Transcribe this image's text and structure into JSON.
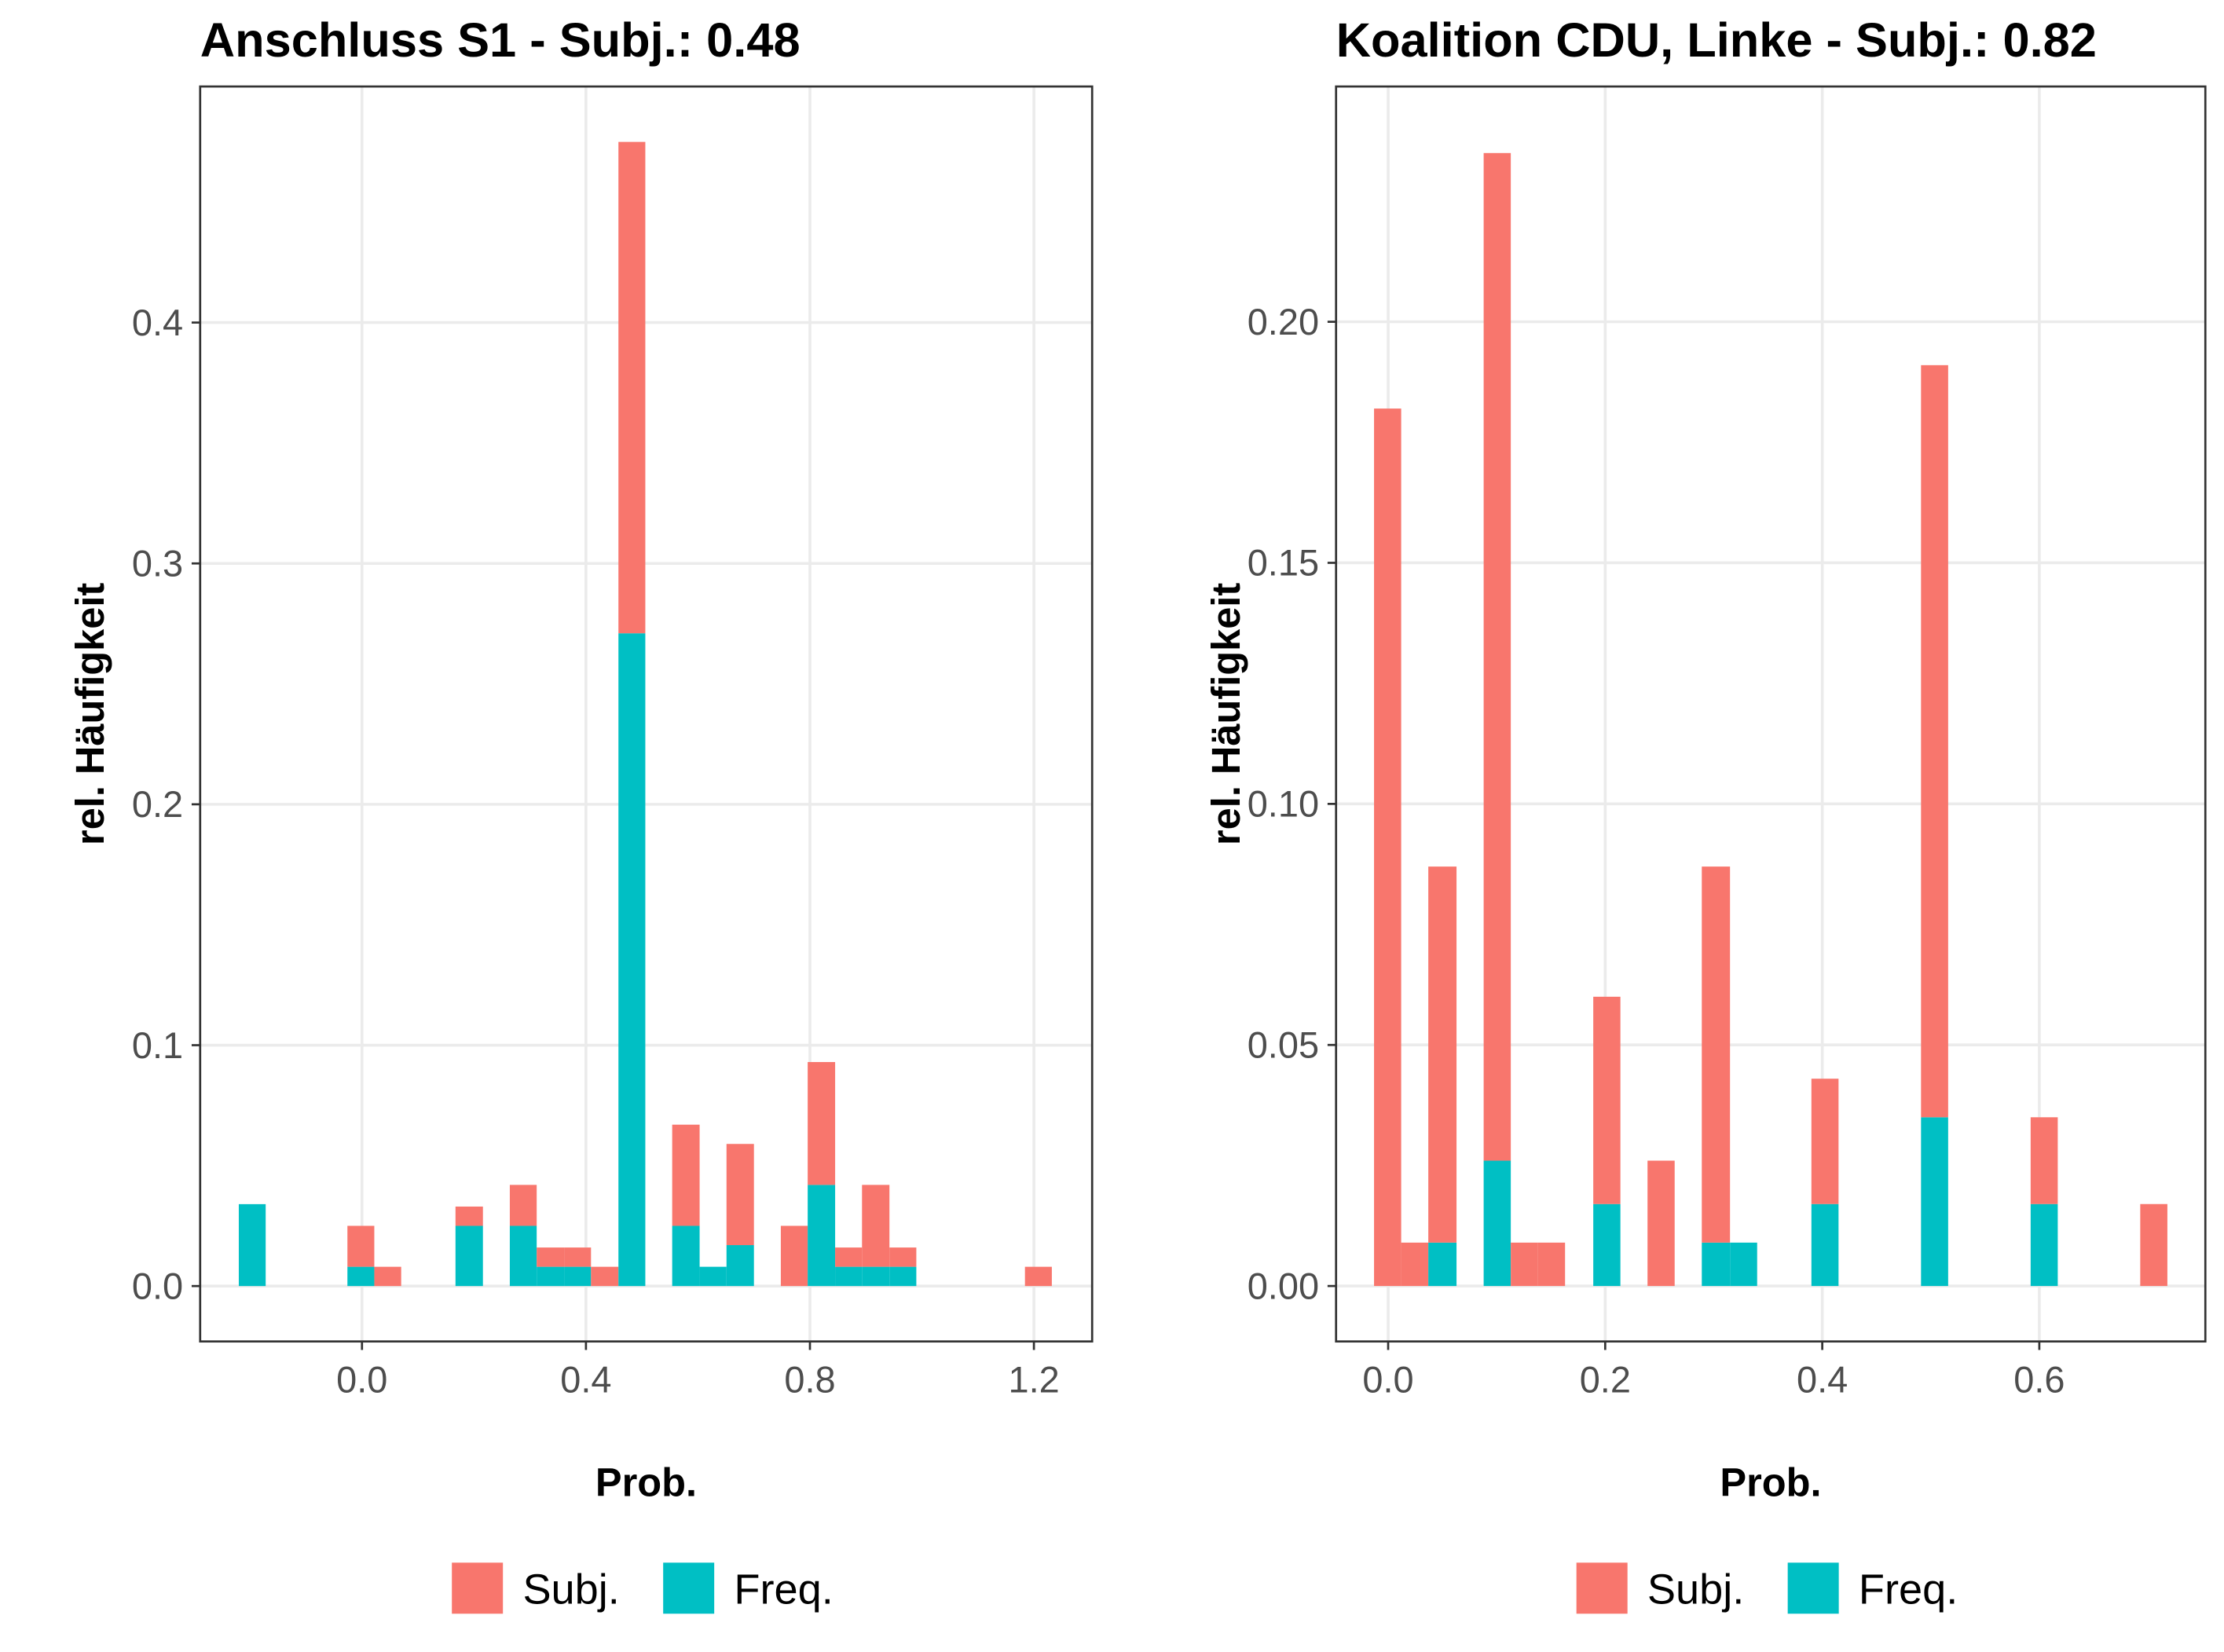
{
  "chart_data": [
    {
      "type": "histogram",
      "title": "Anschluss S1 - Subj.: 0.48",
      "x_label": "Prob.",
      "y_label": "rel. Häufigkeit",
      "bins": [
        -0.22,
        -0.172,
        -0.123,
        -0.075,
        -0.026,
        0.022,
        0.07,
        0.119,
        0.167,
        0.216,
        0.264,
        0.312,
        0.361,
        0.409,
        0.458,
        0.506,
        0.554,
        0.603,
        0.651,
        0.7,
        0.748,
        0.796,
        0.845,
        0.893,
        0.942,
        0.99,
        1.038,
        1.087,
        1.135,
        1.184,
        1.232
      ],
      "series": [
        {
          "name": "Subj.",
          "color": "#f8766d",
          "values": [
            0,
            0,
            0,
            0,
            0.017,
            0.008,
            0,
            0,
            0.008,
            0,
            0.017,
            0.008,
            0.008,
            0.008,
            0.204,
            0,
            0.042,
            0,
            0.042,
            0,
            0.025,
            0.051,
            0.008,
            0.034,
            0.008,
            0,
            0,
            0,
            0,
            0.008
          ]
        },
        {
          "name": "Freq.",
          "color": "#00bfc4",
          "values": [
            0.034,
            0,
            0,
            0,
            0.008,
            0,
            0,
            0,
            0.025,
            0,
            0.025,
            0.008,
            0.008,
            0,
            0.271,
            0,
            0.025,
            0.008,
            0.017,
            0,
            0,
            0.042,
            0.008,
            0.008,
            0.008,
            0,
            0,
            0,
            0,
            0
          ]
        }
      ],
      "xlim": [
        -0.289,
        1.304
      ],
      "ylim": [
        -0.023,
        0.498
      ],
      "xticks": [
        {
          "value": 0,
          "label": "0.0"
        },
        0.4,
        0.8,
        1.2
      ],
      "yticks": [
        {
          "value": 0,
          "label": "0.0"
        },
        0.1,
        0.2,
        0.3,
        0.4
      ],
      "grid": true,
      "legend": "bottom"
    },
    {
      "type": "histogram",
      "title": "Koalition CDU, Linke - Subj.: 0.82",
      "x_label": "Prob.",
      "y_label": "rel. Häufigkeit",
      "bins": [
        -0.013,
        0.012,
        0.037,
        0.063,
        0.088,
        0.113,
        0.138,
        0.163,
        0.189,
        0.214,
        0.239,
        0.264,
        0.289,
        0.315,
        0.34,
        0.365,
        0.39,
        0.415,
        0.441,
        0.466,
        0.491,
        0.516,
        0.541,
        0.567,
        0.592,
        0.617,
        0.642,
        0.667,
        0.693,
        0.718,
        0.743
      ],
      "series": [
        {
          "name": "Subj.",
          "color": "#f8766d",
          "values": [
            0.182,
            0.009,
            0.078,
            0,
            0.209,
            0.009,
            0.009,
            0,
            0.043,
            0,
            0.026,
            0,
            0.078,
            0,
            0,
            0,
            0.026,
            0,
            0,
            0,
            0.156,
            0,
            0,
            0,
            0.018,
            0,
            0,
            0,
            0.017,
            0
          ]
        },
        {
          "name": "Freq.",
          "color": "#00bfc4",
          "values": [
            0,
            0,
            0.009,
            0,
            0.026,
            0,
            0,
            0,
            0.017,
            0,
            0,
            0,
            0.009,
            0.009,
            0,
            0,
            0.017,
            0,
            0,
            0,
            0.035,
            0,
            0,
            0,
            0.017,
            0,
            0,
            0,
            0,
            0
          ]
        }
      ],
      "xlim": [
        -0.048,
        0.753
      ],
      "ylim": [
        -0.0115,
        0.2488
      ],
      "xticks": [
        {
          "value": 0,
          "label": "0.0"
        },
        0.2,
        0.4,
        0.6
      ],
      "yticks": [
        {
          "value": 0,
          "label": "0.00"
        },
        0.05,
        {
          "value": 0.1,
          "label": "0.10"
        },
        0.15,
        {
          "value": 0.2,
          "label": "0.20"
        }
      ],
      "grid": true,
      "legend": "bottom"
    }
  ]
}
